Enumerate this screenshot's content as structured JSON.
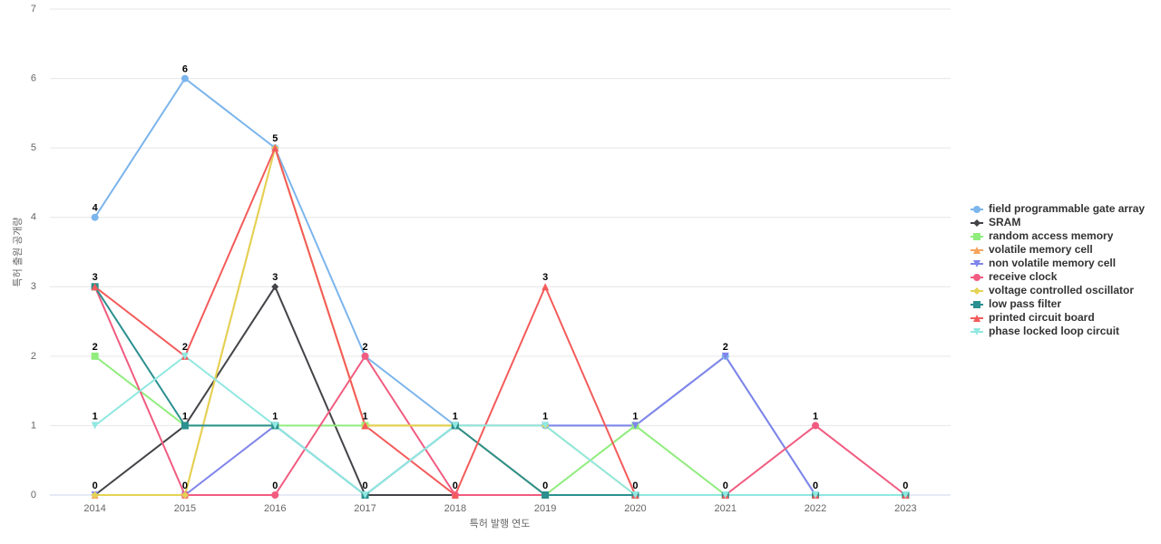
{
  "chart_data": {
    "type": "line",
    "x_label": "특허 발행 연도",
    "y_label": "특허 출원 공개량",
    "categories": [
      "2014",
      "2015",
      "2016",
      "2017",
      "2018",
      "2019",
      "2020",
      "2021",
      "2022",
      "2023"
    ],
    "ylim": [
      0,
      7
    ],
    "yticks": [
      0,
      1,
      2,
      3,
      4,
      5,
      6,
      7
    ],
    "grid": true,
    "legend": "right",
    "series": [
      {
        "name": "field programmable gate array",
        "color": "#7cb5ec",
        "values": [
          4,
          6,
          5,
          2,
          1,
          1,
          1,
          2,
          0,
          0
        ]
      },
      {
        "name": "SRAM",
        "color": "#434348",
        "values": [
          0,
          1,
          3,
          0,
          0,
          0,
          0,
          0,
          0,
          0
        ]
      },
      {
        "name": "random access memory",
        "color": "#90ed7d",
        "values": [
          2,
          1,
          1,
          1,
          1,
          0,
          1,
          0,
          0,
          0
        ]
      },
      {
        "name": "volatile memory cell",
        "color": "#f7a35c",
        "values": [
          0,
          0,
          5,
          1,
          1,
          0,
          0,
          0,
          0,
          0
        ]
      },
      {
        "name": "non volatile memory cell",
        "color": "#8085e9",
        "values": [
          0,
          0,
          1,
          0,
          1,
          1,
          1,
          2,
          0,
          0
        ]
      },
      {
        "name": "receive clock",
        "color": "#f15c80",
        "values": [
          3,
          0,
          0,
          2,
          0,
          0,
          0,
          0,
          1,
          0
        ]
      },
      {
        "name": "voltage controlled oscillator",
        "color": "#e4d354",
        "values": [
          0,
          0,
          5,
          1,
          1,
          1,
          0,
          0,
          0,
          0
        ]
      },
      {
        "name": "low pass filter",
        "color": "#2b908f",
        "values": [
          3,
          1,
          1,
          0,
          1,
          0,
          0,
          0,
          0,
          0
        ]
      },
      {
        "name": "printed circuit board",
        "color": "#f45b5b",
        "values": [
          3,
          2,
          5,
          1,
          0,
          3,
          0,
          0,
          0,
          0
        ]
      },
      {
        "name": "phase locked loop circuit",
        "color": "#91e8e1",
        "values": [
          1,
          2,
          1,
          0,
          1,
          1,
          0,
          0,
          0,
          0
        ]
      }
    ]
  }
}
